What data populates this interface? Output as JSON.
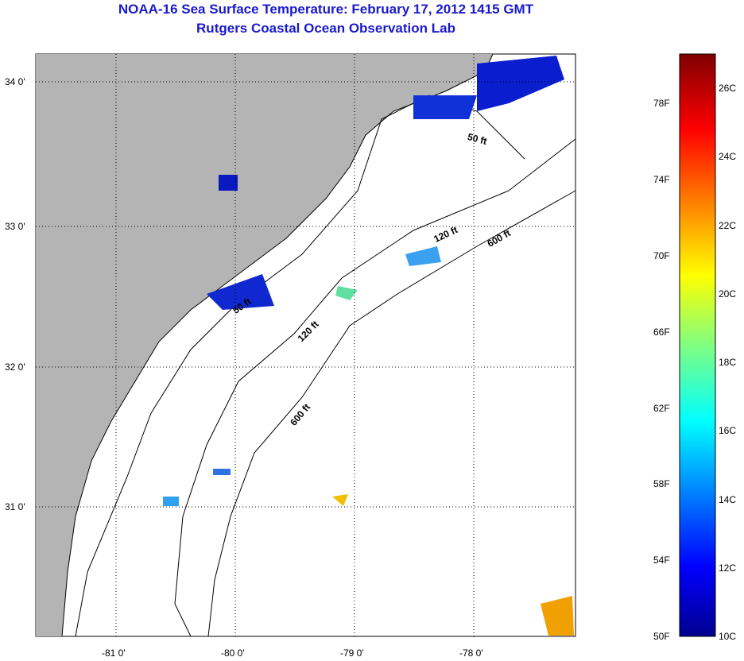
{
  "header": {
    "title": "NOAA-16 Sea Surface Temperature:  February 17, 2012 1415 GMT",
    "subtitle": "Rutgers Coastal Ocean Observation Lab"
  },
  "axes": {
    "lat_ticks": [
      {
        "label": "34 0'",
        "v": 34
      },
      {
        "label": "33 0'",
        "v": 33
      },
      {
        "label": "32 0'",
        "v": 32
      },
      {
        "label": "31 0'",
        "v": 31
      }
    ],
    "lon_ticks": [
      {
        "label": "-81 0'",
        "v": -81
      },
      {
        "label": "-80 0'",
        "v": -80
      },
      {
        "label": "-79 0'",
        "v": -79
      },
      {
        "label": "-78 0'",
        "v": -78
      }
    ]
  },
  "contours": {
    "c50": "50 ft",
    "c120": "120 ft",
    "c600": "600 ft"
  },
  "colorbar": {
    "fahrenheit": [
      "78F",
      "74F",
      "70F",
      "66F",
      "62F",
      "58F",
      "54F",
      "50F"
    ],
    "celsius": [
      "26C",
      "24C",
      "22C",
      "20C",
      "18C",
      "16C",
      "14C",
      "12C",
      "10C"
    ],
    "range_c": [
      10,
      27
    ]
  },
  "colors": {
    "land": "#b4b4b4",
    "title": "#1a1acc"
  }
}
